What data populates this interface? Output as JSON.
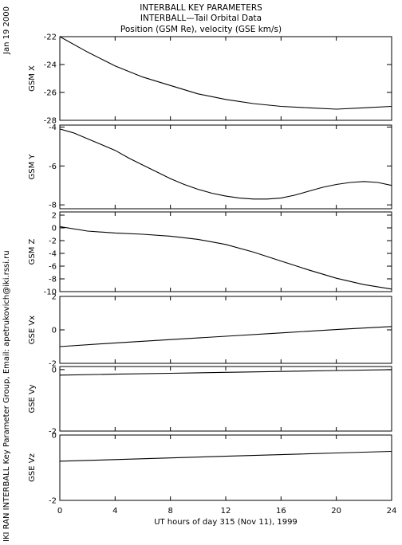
{
  "header": {
    "line1": "INTERBALL KEY PARAMETERS",
    "line2": "INTERBALL—Tail Orbital Data",
    "line3": "Position (GSM Re), velocity (GSE km/s)"
  },
  "side_labels": {
    "date": "Jan 19 2000",
    "credit": "IKI RAN INTERBALL Key Parameter Group, Email: apetrukovich@iki.rssi.ru"
  },
  "chart_data": {
    "type": "line",
    "xlabel": "UT hours of day 315 (Nov 11), 1999",
    "xlim": [
      0,
      24
    ],
    "xticks": [
      "0",
      "4",
      "8",
      "12",
      "16",
      "20",
      "24"
    ],
    "panels": [
      {
        "ylabel": "GSM X",
        "ylim": [
          -28,
          -22
        ],
        "yticks": [
          "-22",
          "-24",
          "-26",
          "-28"
        ],
        "x": [
          0,
          2,
          4,
          6,
          8,
          10,
          12,
          14,
          16,
          18,
          20,
          22,
          24
        ],
        "values": [
          -22.0,
          -23.1,
          -24.1,
          -24.9,
          -25.5,
          -26.1,
          -26.5,
          -26.8,
          -27.0,
          -27.1,
          -27.2,
          -27.1,
          -27.0
        ]
      },
      {
        "ylabel": "GSM Y",
        "ylim": [
          -8.2,
          -3.9
        ],
        "yticks": [
          "-4",
          "-6",
          "-8"
        ],
        "x": [
          0,
          1,
          2,
          3,
          4,
          5,
          6,
          7,
          8,
          9,
          10,
          11,
          12,
          13,
          14,
          15,
          16,
          17,
          18,
          19,
          20,
          21,
          22,
          23,
          24
        ],
        "values": [
          -4.1,
          -4.3,
          -4.6,
          -4.9,
          -5.2,
          -5.6,
          -5.95,
          -6.3,
          -6.65,
          -6.95,
          -7.2,
          -7.4,
          -7.55,
          -7.65,
          -7.7,
          -7.7,
          -7.65,
          -7.5,
          -7.3,
          -7.1,
          -6.95,
          -6.85,
          -6.8,
          -6.85,
          -7.0
        ]
      },
      {
        "ylabel": "GSM Z",
        "ylim": [
          -10,
          2.5
        ],
        "yticks": [
          "2",
          "0",
          "-2",
          "-4",
          "-6",
          "-8",
          "-10"
        ],
        "x": [
          0,
          2,
          4,
          6,
          8,
          10,
          12,
          14,
          16,
          18,
          20,
          22,
          24
        ],
        "values": [
          0.2,
          -0.5,
          -0.8,
          -1.0,
          -1.3,
          -1.8,
          -2.6,
          -3.8,
          -5.2,
          -6.6,
          -7.9,
          -8.9,
          -9.6
        ]
      },
      {
        "ylabel": "GSE Vx",
        "ylim": [
          -2,
          2
        ],
        "yticks": [
          "2",
          "0",
          "-2"
        ],
        "x": [
          0,
          4,
          8,
          12,
          16,
          20,
          24
        ],
        "values": [
          -1.0,
          -0.78,
          -0.58,
          -0.38,
          -0.18,
          0.02,
          0.2
        ]
      },
      {
        "ylabel": "GSE Vy",
        "ylim": [
          -2,
          0.1
        ],
        "yticks": [
          "0",
          "-2"
        ],
        "x": [
          0,
          4,
          8,
          12,
          16,
          20,
          24
        ],
        "values": [
          -0.18,
          -0.15,
          -0.12,
          -0.09,
          -0.06,
          -0.03,
          0.0
        ]
      },
      {
        "ylabel": "GSE Vz",
        "ylim": [
          -2,
          0
        ],
        "yticks": [
          "0",
          "-2"
        ],
        "x": [
          0,
          4,
          8,
          12,
          16,
          20,
          24
        ],
        "values": [
          -0.8,
          -0.75,
          -0.7,
          -0.65,
          -0.6,
          -0.55,
          -0.5
        ]
      }
    ]
  }
}
